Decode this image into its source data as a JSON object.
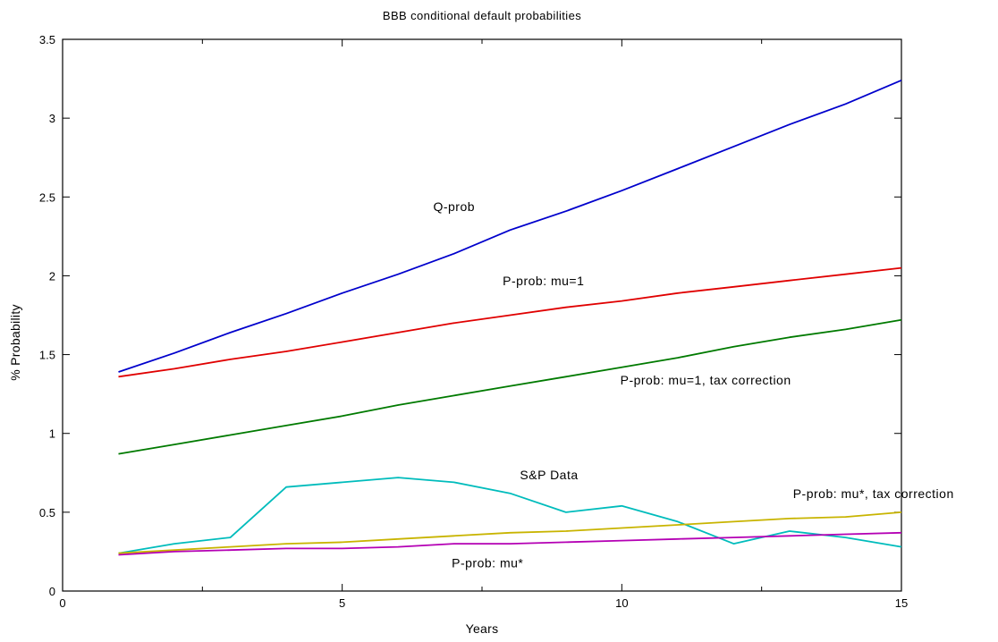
{
  "chart_data": {
    "type": "line",
    "title": "BBB conditional default probabilities",
    "xlabel": "Years",
    "ylabel": "% Probability",
    "xlim": [
      0,
      15
    ],
    "ylim": [
      0,
      3.5
    ],
    "xticks": [
      0,
      5,
      10,
      15
    ],
    "yticks": [
      0,
      0.5,
      1,
      1.5,
      2,
      2.5,
      3,
      3.5
    ],
    "grid": false,
    "legend": "none",
    "x": [
      1,
      2,
      3,
      4,
      5,
      6,
      7,
      8,
      9,
      10,
      11,
      12,
      13,
      14,
      15
    ],
    "series": [
      {
        "name": "Q-prob",
        "color": "#0000cc",
        "values": [
          1.39,
          1.51,
          1.64,
          1.76,
          1.89,
          2.01,
          2.14,
          2.29,
          2.41,
          2.54,
          2.68,
          2.82,
          2.96,
          3.09,
          3.24
        ]
      },
      {
        "name": "P-prob: mu=1",
        "color": "#e00000",
        "values": [
          1.36,
          1.41,
          1.47,
          1.52,
          1.58,
          1.64,
          1.7,
          1.75,
          1.8,
          1.84,
          1.89,
          1.93,
          1.97,
          2.01,
          2.05
        ]
      },
      {
        "name": "P-prob: mu=1, tax correction",
        "color": "#007a00",
        "values": [
          0.87,
          0.93,
          0.99,
          1.05,
          1.11,
          1.18,
          1.24,
          1.3,
          1.36,
          1.42,
          1.48,
          1.55,
          1.61,
          1.66,
          1.72
        ]
      },
      {
        "name": "S&P Data",
        "color": "#00bcbc",
        "values": [
          0.24,
          0.3,
          0.34,
          0.66,
          0.69,
          0.72,
          0.69,
          0.62,
          0.5,
          0.54,
          0.44,
          0.3,
          0.38,
          0.34,
          0.28
        ]
      },
      {
        "name": "P-prob: mu*, tax correction",
        "color": "#c8b400",
        "values": [
          0.24,
          0.26,
          0.28,
          0.3,
          0.31,
          0.33,
          0.35,
          0.37,
          0.38,
          0.4,
          0.42,
          0.44,
          0.46,
          0.47,
          0.5
        ]
      },
      {
        "name": "P-prob: mu*",
        "color": "#b400b4",
        "values": [
          0.23,
          0.25,
          0.26,
          0.27,
          0.27,
          0.28,
          0.3,
          0.3,
          0.31,
          0.32,
          0.33,
          0.34,
          0.35,
          0.36,
          0.37
        ]
      }
    ],
    "annotations": [
      {
        "text": "Q-prob",
        "x": 7.0,
        "y": 2.41
      },
      {
        "text": "P-prob: mu=1",
        "x": 8.6,
        "y": 1.94
      },
      {
        "text": "P-prob: mu=1, tax correction",
        "x": 11.5,
        "y": 1.31
      },
      {
        "text": "S&P Data",
        "x": 8.7,
        "y": 0.71
      },
      {
        "text": "P-prob: mu*, tax correction",
        "x": 14.5,
        "y": 0.59
      },
      {
        "text": "P-prob: mu*",
        "x": 7.6,
        "y": 0.15
      }
    ]
  }
}
